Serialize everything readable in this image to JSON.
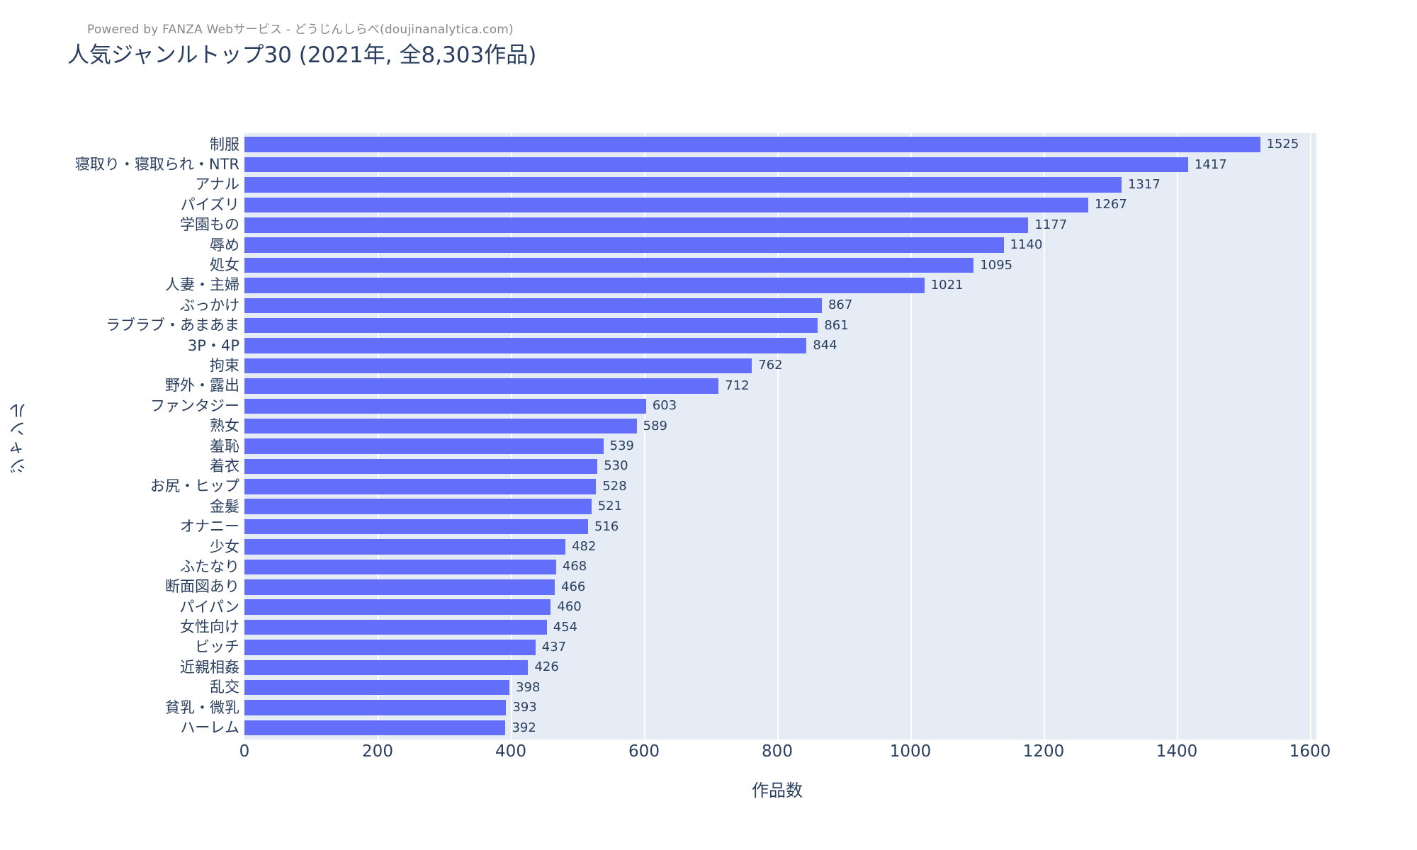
{
  "annotation": "Powered by FANZA Webサービス - どうじんしらべ(doujinanalytica.com)",
  "chart_data": {
    "type": "bar",
    "orientation": "horizontal",
    "title": "人気ジャンルトップ30 (2021年, 全8,303作品)",
    "xlabel": "作品数",
    "ylabel": "ジャンル",
    "xlim": [
      0,
      1600
    ],
    "xticks": [
      0,
      200,
      400,
      600,
      800,
      1000,
      1200,
      1400,
      1600
    ],
    "grid": true,
    "legend": false,
    "value_labels": "outside",
    "categories": [
      "制服",
      "寝取り・寝取られ・NTR",
      "アナル",
      "パイズリ",
      "学園もの",
      "辱め",
      "処女",
      "人妻・主婦",
      "ぶっかけ",
      "ラブラブ・あまあま",
      "3P・4P",
      "拘束",
      "野外・露出",
      "ファンタジー",
      "熟女",
      "羞恥",
      "着衣",
      "お尻・ヒップ",
      "金髪",
      "オナニー",
      "少女",
      "ふたなり",
      "断面図あり",
      "パイパン",
      "女性向け",
      "ビッチ",
      "近親相姦",
      "乱交",
      "貧乳・微乳",
      "ハーレム"
    ],
    "values": [
      1525,
      1417,
      1317,
      1267,
      1177,
      1140,
      1095,
      1021,
      867,
      861,
      844,
      762,
      712,
      603,
      589,
      539,
      530,
      528,
      521,
      516,
      482,
      468,
      466,
      460,
      454,
      437,
      426,
      398,
      393,
      392
    ]
  },
  "colors": {
    "bar": "#636efa",
    "plot_background": "#e5ecf6",
    "gridline": "#ffffff",
    "text": "#2a3f5f",
    "annotation_text": "#888888",
    "page_background": "#ffffff"
  }
}
